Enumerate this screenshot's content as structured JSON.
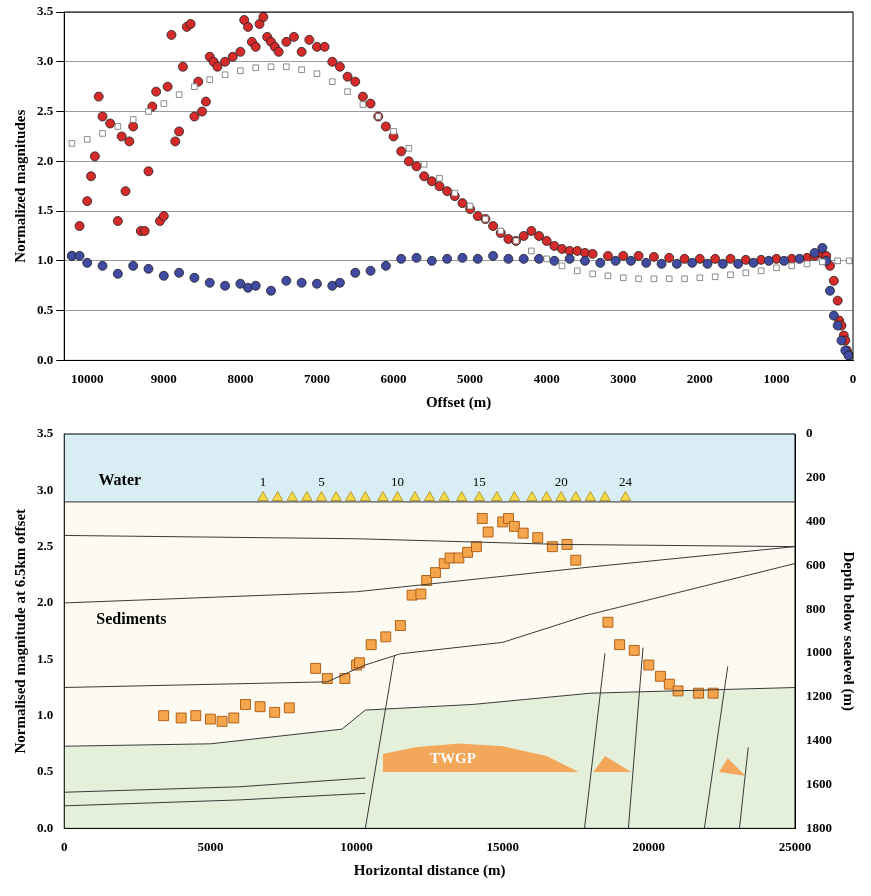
{
  "chart_data": [
    {
      "type": "scatter",
      "x_label": "Offset (m)",
      "y_label": "Normalized magnitudes",
      "xlim": [
        10300,
        0
      ],
      "xticks": [
        10000,
        9000,
        8000,
        7000,
        6000,
        5000,
        4000,
        3000,
        2000,
        1000,
        0
      ],
      "ylim": [
        0,
        3.5
      ],
      "yticks": [
        {
          "value": 0,
          "label": "0.0"
        },
        {
          "value": 0.5,
          "label": "0.5"
        },
        {
          "value": 1,
          "label": "1.0"
        },
        {
          "value": 1.5,
          "label": "1.5"
        },
        {
          "value": 2,
          "label": "2.0"
        },
        {
          "value": 2.5,
          "label": "2.5"
        },
        {
          "value": 3,
          "label": "3.0"
        },
        {
          "value": 3.5,
          "label": "3.5"
        }
      ],
      "grid": true,
      "series": [
        {
          "color": "#ffffff",
          "marker": "square",
          "x": [
            10200,
            10000,
            9800,
            9600,
            9400,
            9200,
            9000,
            8800,
            8600,
            8400,
            8200,
            8000,
            7800,
            7600,
            7400,
            7200,
            7000,
            6800,
            6600,
            6400,
            6200,
            6000,
            5800,
            5600,
            5400,
            5200,
            5000,
            4800,
            4600,
            4400,
            4200,
            4000,
            3800,
            3600,
            3400,
            3200,
            3000,
            2800,
            2600,
            2400,
            2200,
            2000,
            1800,
            1600,
            1400,
            1200,
            1000,
            800,
            600,
            400,
            200,
            50
          ],
          "values": [
            2.18,
            2.22,
            2.28,
            2.35,
            2.42,
            2.5,
            2.58,
            2.67,
            2.75,
            2.82,
            2.87,
            2.91,
            2.94,
            2.95,
            2.95,
            2.92,
            2.88,
            2.8,
            2.7,
            2.57,
            2.45,
            2.3,
            2.13,
            1.97,
            1.83,
            1.68,
            1.55,
            1.42,
            1.3,
            1.2,
            1.1,
            1.02,
            0.95,
            0.9,
            0.87,
            0.85,
            0.83,
            0.82,
            0.82,
            0.82,
            0.82,
            0.83,
            0.84,
            0.86,
            0.88,
            0.9,
            0.93,
            0.95,
            0.97,
            0.99,
            1.0,
            1.0
          ]
        },
        {
          "color": "#3f4aa0",
          "marker": "circle",
          "x": [
            10200,
            10100,
            10000,
            9800,
            9600,
            9400,
            9200,
            9000,
            8800,
            8600,
            8400,
            8200,
            8000,
            7900,
            7800,
            7600,
            7400,
            7200,
            7000,
            6800,
            6700,
            6500,
            6300,
            6100,
            5900,
            5700,
            5500,
            5300,
            5100,
            4900,
            4700,
            4500,
            4300,
            4100,
            3900,
            3700,
            3500,
            3300,
            3100,
            2900,
            2700,
            2500,
            2300,
            2100,
            1900,
            1700,
            1500,
            1300,
            1100,
            900,
            700,
            500,
            400,
            350,
            300,
            250,
            200,
            150,
            100,
            60
          ],
          "values": [
            1.05,
            1.05,
            0.98,
            0.95,
            0.87,
            0.95,
            0.92,
            0.85,
            0.88,
            0.83,
            0.78,
            0.75,
            0.77,
            0.73,
            0.75,
            0.7,
            0.8,
            0.78,
            0.77,
            0.75,
            0.78,
            0.88,
            0.9,
            0.95,
            1.02,
            1.03,
            1.0,
            1.02,
            1.03,
            1.02,
            1.05,
            1.02,
            1.02,
            1.02,
            1.0,
            1.02,
            1.0,
            0.98,
            1.0,
            1.0,
            0.98,
            0.97,
            0.97,
            0.98,
            0.97,
            0.97,
            0.97,
            0.98,
            1.0,
            1.0,
            1.02,
            1.08,
            1.13,
            1.0,
            0.7,
            0.45,
            0.35,
            0.2,
            0.1,
            0.05
          ]
        },
        {
          "color": "#d42a2a",
          "marker": "circle",
          "x": [
            10200,
            10100,
            10000,
            9950,
            9900,
            9850,
            9800,
            9700,
            9600,
            9550,
            9500,
            9450,
            9400,
            9300,
            9250,
            9200,
            9150,
            9100,
            9050,
            9000,
            8950,
            8900,
            8850,
            8800,
            8750,
            8700,
            8650,
            8600,
            8550,
            8500,
            8450,
            8400,
            8350,
            8300,
            8200,
            8100,
            8000,
            7950,
            7900,
            7850,
            7800,
            7750,
            7700,
            7650,
            7600,
            7550,
            7500,
            7400,
            7300,
            7200,
            7100,
            7000,
            6900,
            6800,
            6700,
            6600,
            6500,
            6400,
            6300,
            6200,
            6100,
            6000,
            5900,
            5800,
            5700,
            5600,
            5500,
            5400,
            5300,
            5200,
            5100,
            5000,
            4900,
            4800,
            4700,
            4600,
            4500,
            4400,
            4300,
            4200,
            4100,
            4000,
            3900,
            3800,
            3700,
            3600,
            3500,
            3400,
            3200,
            3000,
            2800,
            2600,
            2400,
            2200,
            2000,
            1800,
            1600,
            1400,
            1200,
            1000,
            800,
            600,
            500,
            400,
            350,
            300,
            250,
            200,
            180,
            150,
            120,
            100,
            80,
            50
          ],
          "values": [
            1.05,
            1.35,
            1.6,
            1.85,
            2.05,
            2.65,
            2.45,
            2.38,
            1.4,
            2.25,
            1.7,
            2.2,
            2.35,
            1.3,
            1.3,
            1.9,
            2.55,
            2.7,
            1.4,
            1.45,
            2.75,
            3.27,
            2.2,
            2.3,
            2.95,
            3.35,
            3.38,
            2.45,
            2.8,
            2.5,
            2.6,
            3.05,
            3.0,
            2.95,
            3.0,
            3.05,
            3.1,
            3.42,
            3.35,
            3.2,
            3.15,
            3.38,
            3.45,
            3.25,
            3.2,
            3.15,
            3.1,
            3.2,
            3.25,
            3.1,
            3.22,
            3.15,
            3.15,
            3.0,
            2.95,
            2.85,
            2.8,
            2.65,
            2.58,
            2.45,
            2.35,
            2.25,
            2.1,
            2.0,
            1.95,
            1.85,
            1.8,
            1.75,
            1.7,
            1.65,
            1.58,
            1.52,
            1.45,
            1.42,
            1.35,
            1.28,
            1.22,
            1.2,
            1.25,
            1.3,
            1.25,
            1.2,
            1.15,
            1.12,
            1.1,
            1.1,
            1.08,
            1.07,
            1.05,
            1.05,
            1.05,
            1.04,
            1.03,
            1.02,
            1.02,
            1.02,
            1.02,
            1.01,
            1.01,
            1.02,
            1.02,
            1.03,
            1.05,
            1.07,
            1.05,
            0.95,
            0.8,
            0.6,
            0.4,
            0.35,
            0.25,
            0.2,
            0.1,
            0.05
          ]
        }
      ]
    },
    {
      "type": "scatter",
      "x_label": "Horizontal distance (m)",
      "y_label": "Normalised magnitude at 6.5km offset",
      "y2_label": "Depth below sealevel (m)",
      "xlim": [
        0,
        25000
      ],
      "xticks": [
        0,
        5000,
        10000,
        15000,
        20000,
        25000
      ],
      "ylim": [
        0,
        3.5
      ],
      "yticks": [
        {
          "value": 0,
          "label": "0.0"
        },
        {
          "value": 0.5,
          "label": "0.5"
        },
        {
          "value": 1,
          "label": "1.0"
        },
        {
          "value": 1.5,
          "label": "1.5"
        },
        {
          "value": 2,
          "label": "2.0"
        },
        {
          "value": 2.5,
          "label": "2.5"
        },
        {
          "value": 3,
          "label": "3.0"
        },
        {
          "value": 3.5,
          "label": "3.5"
        }
      ],
      "y2lim": [
        1800,
        0
      ],
      "y2ticks": [
        0,
        200,
        400,
        600,
        800,
        1000,
        1200,
        1400,
        1600,
        1800
      ],
      "grid": false,
      "series": [
        {
          "color": "#f5a64c",
          "marker": "square",
          "x": [
            3400,
            4000,
            4500,
            5000,
            5400,
            5800,
            6200,
            6700,
            7200,
            7700,
            8600,
            9000,
            9600,
            10000,
            10100,
            10500,
            11000,
            11500,
            11900,
            12200,
            12400,
            12700,
            13000,
            13200,
            13500,
            13800,
            14100,
            14300,
            14500,
            15000,
            15200,
            15400,
            15700,
            16200,
            16700,
            17200,
            17500,
            18600,
            19000,
            19500,
            20000,
            20400,
            20700,
            21000,
            21700,
            22200
          ],
          "values": [
            1.0,
            0.98,
            1.0,
            0.97,
            0.95,
            0.98,
            1.1,
            1.08,
            1.03,
            1.07,
            1.42,
            1.33,
            1.33,
            1.45,
            1.47,
            1.63,
            1.7,
            1.8,
            2.07,
            2.08,
            2.2,
            2.27,
            2.35,
            2.4,
            2.4,
            2.45,
            2.5,
            2.75,
            2.63,
            2.72,
            2.75,
            2.68,
            2.62,
            2.58,
            2.5,
            2.52,
            2.38,
            1.83,
            1.63,
            1.58,
            1.45,
            1.35,
            1.28,
            1.22,
            1.2,
            1.2
          ]
        }
      ],
      "water": {
        "label": "Water",
        "color": "#d9edf5"
      },
      "sediments": {
        "label": "Sediments",
        "color": "#fcfaf1"
      },
      "seafloor": {
        "x": [
          0,
          25000
        ],
        "depth": [
          310,
          310
        ]
      },
      "deep_layer": {
        "color": "#e4f0da",
        "x": [
          0,
          5000,
          9500,
          10300,
          14000,
          18000,
          25000
        ],
        "depth": [
          1425,
          1414,
          1347,
          1260,
          1234,
          1183,
          1157
        ]
      },
      "horizons": [
        {
          "x": [
            0,
            10000,
            17000,
            25000
          ],
          "depth": [
            463,
            478,
            504,
            514
          ]
        },
        {
          "x": [
            0,
            10000,
            18000,
            25000
          ],
          "depth": [
            771,
            720,
            607,
            514
          ]
        },
        {
          "x": [
            0,
            9000,
            10300,
            11500,
            15000,
            18000,
            25000
          ],
          "depth": [
            1157,
            1131,
            1054,
            1003,
            951,
            823,
            591
          ]
        },
        {
          "x": [
            0,
            6000,
            10300
          ],
          "depth": [
            1635,
            1610,
            1570
          ]
        },
        {
          "x": [
            0,
            6000,
            10300
          ],
          "depth": [
            1697,
            1670,
            1640
          ]
        }
      ],
      "faults": [
        {
          "x": [
            10300,
            11300
          ],
          "depth": [
            1800,
            1010
          ]
        },
        {
          "x": [
            17800,
            18500
          ],
          "depth": [
            1800,
            1000
          ]
        },
        {
          "x": [
            19300,
            19800
          ],
          "depth": [
            1800,
            975
          ]
        },
        {
          "x": [
            21900,
            22700
          ],
          "depth": [
            1800,
            1060
          ]
        },
        {
          "x": [
            23100,
            23400
          ],
          "depth": [
            1800,
            1430
          ]
        }
      ],
      "reservoir": {
        "label": "TWGP",
        "color": "#f3a75a",
        "polygons": [
          {
            "x": [
              10900,
              10900,
              12000,
              13500,
              15000,
              16500,
              17600
            ],
            "depth": [
              1543,
              1460,
              1430,
              1412,
              1425,
              1470,
              1543
            ]
          },
          {
            "x": [
              18100,
              18500,
              19400
            ],
            "depth": [
              1543,
              1470,
              1543
            ]
          },
          {
            "x": [
              22400,
              22700,
              23300
            ],
            "depth": [
              1543,
              1480,
              1560
            ]
          }
        ]
      },
      "receivers": {
        "color": "#f5d94a",
        "marker": "triangle",
        "depth": 290,
        "x": [
          6800,
          7300,
          7800,
          8300,
          8800,
          9300,
          9800,
          10300,
          10900,
          11400,
          12000,
          12500,
          13000,
          13600,
          14200,
          14800,
          15400,
          16000,
          16500,
          17000,
          17500,
          18000,
          18500,
          19200
        ],
        "labels": [
          1,
          null,
          null,
          null,
          5,
          null,
          null,
          null,
          null,
          10,
          null,
          null,
          null,
          null,
          15,
          null,
          null,
          null,
          null,
          20,
          null,
          null,
          null,
          24
        ]
      }
    }
  ]
}
